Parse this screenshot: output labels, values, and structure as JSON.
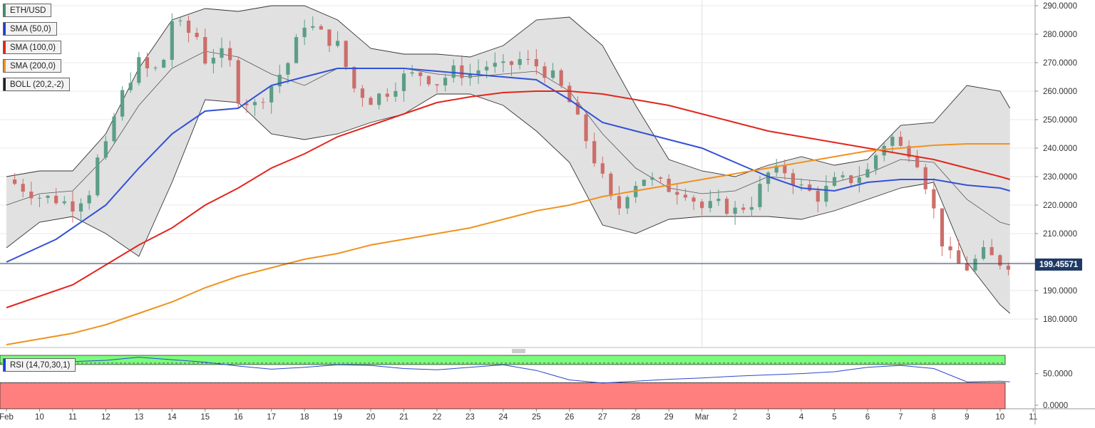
{
  "legend": [
    {
      "label": "ETH/USD",
      "color": "#4a8f6e"
    },
    {
      "label": "SMA (50,0)",
      "color": "#1f3fd6"
    },
    {
      "label": "SMA (100,0)",
      "color": "#e2261c"
    },
    {
      "label": "SMA (200,0)",
      "color": "#f0921e"
    },
    {
      "label": "BOLL (20,2,-2)",
      "color": "#222222"
    }
  ],
  "rsi_legend": {
    "label": "RSI (14,70,30,1)",
    "color": "#1f3fd6"
  },
  "current_price": {
    "label": "199.45571",
    "value": 199.45571
  },
  "colors": {
    "up": "#5c9e86",
    "down": "#cc6e6a",
    "band": "#dcdcdc",
    "sma50": "#3251d8",
    "sma100": "#e2261c",
    "sma200": "#f0921e",
    "rsi": "#2a47d0",
    "overbought": "#7cfc7c",
    "oversold": "#ff7f7f",
    "price_line": "#1e3a66"
  },
  "chart_data": [
    {
      "type": "candlestick",
      "title": "ETH/USD",
      "ylim": [
        170,
        292
      ],
      "yticks": [
        180,
        190,
        200,
        210,
        220,
        230,
        240,
        250,
        260,
        270,
        280,
        290
      ],
      "ytick_labels": [
        "180.0000",
        "190.0000",
        "200.0000",
        "210.0000",
        "220.0000",
        "230.0000",
        "240.0000",
        "250.0000",
        "260.0000",
        "270.0000",
        "280.0000",
        "290.0000"
      ],
      "x_labels": [
        "Feb",
        "10",
        "11",
        "12",
        "13",
        "14",
        "15",
        "16",
        "17",
        "18",
        "19",
        "20",
        "21",
        "22",
        "23",
        "24",
        "25",
        "26",
        "27",
        "28",
        "29",
        "Mar",
        "2",
        "3",
        "4",
        "5",
        "6",
        "7",
        "8",
        "9",
        "10",
        "11"
      ],
      "grid": true,
      "current_price": 199.45571,
      "close_series": [
        [
          0,
          229
        ],
        [
          0.5,
          226
        ],
        [
          1,
          223
        ],
        [
          1.5,
          222
        ],
        [
          2,
          220
        ],
        [
          2.5,
          225
        ],
        [
          2.8,
          238
        ],
        [
          3,
          240
        ],
        [
          3.3,
          253
        ],
        [
          3.6,
          262
        ],
        [
          4,
          270
        ],
        [
          4.4,
          266
        ],
        [
          4.8,
          272
        ],
        [
          5,
          285
        ],
        [
          5.4,
          281
        ],
        [
          5.8,
          279
        ],
        [
          6,
          271
        ],
        [
          6.4,
          274
        ],
        [
          6.8,
          269
        ],
        [
          7,
          258
        ],
        [
          7.5,
          255
        ],
        [
          8,
          262
        ],
        [
          8.5,
          270
        ],
        [
          9,
          284
        ],
        [
          9.5,
          280
        ],
        [
          10,
          276
        ],
        [
          10.5,
          261
        ],
        [
          11,
          257
        ],
        [
          11.5,
          260
        ],
        [
          12,
          265
        ],
        [
          12.5,
          266
        ],
        [
          13,
          263
        ],
        [
          13.5,
          267
        ],
        [
          14,
          266
        ],
        [
          14.5,
          269
        ],
        [
          15,
          268
        ],
        [
          15.5,
          271
        ],
        [
          16,
          269
        ],
        [
          16.6,
          264
        ],
        [
          17,
          256
        ],
        [
          17.5,
          243
        ],
        [
          18,
          229
        ],
        [
          18.4,
          217
        ],
        [
          18.8,
          226
        ],
        [
          19.2,
          230
        ],
        [
          19.6,
          228
        ],
        [
          20,
          226
        ],
        [
          20.5,
          225
        ],
        [
          21,
          219
        ],
        [
          21.5,
          220
        ],
        [
          22,
          218
        ],
        [
          22.5,
          221
        ],
        [
          23,
          231
        ],
        [
          23.5,
          232
        ],
        [
          24,
          226
        ],
        [
          24.5,
          223
        ],
        [
          25,
          228
        ],
        [
          25.5,
          229
        ],
        [
          26,
          232
        ],
        [
          26.4,
          241
        ],
        [
          26.8,
          244
        ],
        [
          27,
          240
        ],
        [
          27.4,
          239
        ],
        [
          27.8,
          226
        ],
        [
          28,
          218
        ],
        [
          28.3,
          205
        ],
        [
          28.6,
          200
        ],
        [
          29,
          198
        ],
        [
          29.5,
          203
        ],
        [
          30,
          200
        ],
        [
          30.3,
          199.46
        ]
      ],
      "series": [
        {
          "name": "SMA (50,0)",
          "values": [
            [
              0,
              200
            ],
            [
              1.5,
              208
            ],
            [
              3,
              220
            ],
            [
              4,
              233
            ],
            [
              5,
              245
            ],
            [
              6,
              253
            ],
            [
              7,
              254
            ],
            [
              8,
              262
            ],
            [
              9,
              265
            ],
            [
              10,
              268
            ],
            [
              11,
              268
            ],
            [
              12,
              268
            ],
            [
              13,
              267
            ],
            [
              14,
              266
            ],
            [
              15,
              265
            ],
            [
              16,
              264
            ],
            [
              17,
              257
            ],
            [
              18,
              249
            ],
            [
              19,
              246
            ],
            [
              20,
              243
            ],
            [
              21,
              240
            ],
            [
              22,
              235
            ],
            [
              23,
              230
            ],
            [
              24,
              226
            ],
            [
              25,
              225
            ],
            [
              26,
              228
            ],
            [
              27,
              229
            ],
            [
              28,
              229
            ],
            [
              29,
              227
            ],
            [
              30,
              226
            ],
            [
              30.3,
              225
            ]
          ]
        },
        {
          "name": "SMA (100,0)",
          "values": [
            [
              0,
              184
            ],
            [
              2,
              192
            ],
            [
              3,
              199
            ],
            [
              4,
              206
            ],
            [
              5,
              212
            ],
            [
              6,
              220
            ],
            [
              7,
              226
            ],
            [
              8,
              233
            ],
            [
              9,
              238
            ],
            [
              10,
              244
            ],
            [
              11,
              248
            ],
            [
              12,
              252
            ],
            [
              13,
              256
            ],
            [
              14,
              258
            ],
            [
              15,
              259.5
            ],
            [
              16,
              260
            ],
            [
              17,
              260
            ],
            [
              18,
              259
            ],
            [
              19,
              257
            ],
            [
              20,
              255
            ],
            [
              21,
              252
            ],
            [
              22,
              249
            ],
            [
              23,
              246
            ],
            [
              24,
              244
            ],
            [
              25,
              242
            ],
            [
              26,
              240
            ],
            [
              27,
              238
            ],
            [
              28,
              236
            ],
            [
              29,
              233
            ],
            [
              30,
              230
            ],
            [
              30.3,
              229
            ]
          ]
        },
        {
          "name": "SMA (200,0)",
          "values": [
            [
              0,
              171
            ],
            [
              2,
              175
            ],
            [
              3,
              178
            ],
            [
              4,
              182
            ],
            [
              5,
              186
            ],
            [
              6,
              191
            ],
            [
              7,
              195
            ],
            [
              8,
              198
            ],
            [
              9,
              201
            ],
            [
              10,
              203
            ],
            [
              11,
              206
            ],
            [
              12,
              208
            ],
            [
              13,
              210
            ],
            [
              14,
              212
            ],
            [
              15,
              215
            ],
            [
              16,
              218
            ],
            [
              17,
              220
            ],
            [
              18,
              223
            ],
            [
              19,
              225
            ],
            [
              20,
              227
            ],
            [
              21,
              229
            ],
            [
              22,
              231
            ],
            [
              23,
              233
            ],
            [
              24,
              235
            ],
            [
              25,
              237
            ],
            [
              26,
              239
            ],
            [
              27,
              240
            ],
            [
              28,
              241
            ],
            [
              29,
              241.5
            ],
            [
              30,
              241.5
            ],
            [
              30.3,
              241.5
            ]
          ]
        }
      ],
      "bollinger": {
        "upper": [
          [
            0,
            230
          ],
          [
            1,
            232
          ],
          [
            2,
            232
          ],
          [
            3,
            245
          ],
          [
            4,
            268
          ],
          [
            5,
            285
          ],
          [
            6,
            289
          ],
          [
            7,
            288
          ],
          [
            8,
            290
          ],
          [
            9,
            290
          ],
          [
            10,
            285
          ],
          [
            11,
            275
          ],
          [
            12,
            273
          ],
          [
            13,
            273
          ],
          [
            14,
            272
          ],
          [
            15,
            276
          ],
          [
            16,
            285
          ],
          [
            17,
            286
          ],
          [
            18,
            276
          ],
          [
            19,
            255
          ],
          [
            20,
            236
          ],
          [
            21,
            232
          ],
          [
            22,
            230
          ],
          [
            23,
            234
          ],
          [
            24,
            237
          ],
          [
            25,
            234
          ],
          [
            26,
            236
          ],
          [
            27,
            248
          ],
          [
            28,
            249
          ],
          [
            29,
            262
          ],
          [
            30,
            260
          ],
          [
            30.3,
            254
          ]
        ],
        "middle": [
          [
            0,
            220
          ],
          [
            1,
            224
          ],
          [
            2,
            225
          ],
          [
            3,
            237
          ],
          [
            4,
            255
          ],
          [
            5,
            268
          ],
          [
            6,
            274
          ],
          [
            7,
            272
          ],
          [
            8,
            266
          ],
          [
            9,
            262
          ],
          [
            10,
            268
          ],
          [
            11,
            268
          ],
          [
            12,
            268
          ],
          [
            13,
            266
          ],
          [
            14,
            265
          ],
          [
            15,
            266
          ],
          [
            16,
            267
          ],
          [
            17,
            260
          ],
          [
            18,
            245
          ],
          [
            19,
            233
          ],
          [
            20,
            226
          ],
          [
            21,
            224
          ],
          [
            22,
            225
          ],
          [
            23,
            230
          ],
          [
            24,
            229
          ],
          [
            25,
            228
          ],
          [
            26,
            231
          ],
          [
            27,
            236
          ],
          [
            28,
            235
          ],
          [
            29,
            222
          ],
          [
            30,
            214
          ],
          [
            30.3,
            213
          ]
        ],
        "lower": [
          [
            0,
            205
          ],
          [
            1,
            214
          ],
          [
            2,
            216
          ],
          [
            3,
            210
          ],
          [
            4,
            202
          ],
          [
            5,
            228
          ],
          [
            6,
            257
          ],
          [
            7,
            256
          ],
          [
            8,
            245
          ],
          [
            9,
            243
          ],
          [
            10,
            245
          ],
          [
            11,
            249
          ],
          [
            12,
            252
          ],
          [
            13,
            259
          ],
          [
            14,
            259
          ],
          [
            15,
            255
          ],
          [
            16,
            246
          ],
          [
            17,
            235
          ],
          [
            18,
            213
          ],
          [
            19,
            210
          ],
          [
            20,
            215
          ],
          [
            21,
            216
          ],
          [
            22,
            216
          ],
          [
            23,
            216
          ],
          [
            24,
            215
          ],
          [
            25,
            218
          ],
          [
            26,
            222
          ],
          [
            27,
            226
          ],
          [
            28,
            228
          ],
          [
            29,
            200
          ],
          [
            30,
            185
          ],
          [
            30.3,
            182
          ]
        ]
      }
    },
    {
      "type": "line",
      "title": "RSI (14,70,30,1)",
      "ylim": [
        0,
        80
      ],
      "yticks": [
        0,
        50
      ],
      "ytick_labels": [
        "0.0000",
        "50.0000"
      ],
      "overbought": 70,
      "oversold": 30,
      "values": [
        [
          0,
          70
        ],
        [
          1,
          68
        ],
        [
          2,
          69
        ],
        [
          3,
          71
        ],
        [
          4,
          76
        ],
        [
          5,
          72
        ],
        [
          6,
          68
        ],
        [
          7,
          62
        ],
        [
          8,
          57
        ],
        [
          9,
          60
        ],
        [
          10,
          64
        ],
        [
          11,
          63
        ],
        [
          12,
          58
        ],
        [
          13,
          56
        ],
        [
          14,
          60
        ],
        [
          15,
          64
        ],
        [
          16,
          55
        ],
        [
          17,
          40
        ],
        [
          18,
          35
        ],
        [
          19,
          38
        ],
        [
          20,
          41
        ],
        [
          21,
          43
        ],
        [
          22,
          46
        ],
        [
          23,
          48
        ],
        [
          24,
          50
        ],
        [
          25,
          53
        ],
        [
          26,
          60
        ],
        [
          27,
          63
        ],
        [
          28,
          58
        ],
        [
          29,
          37
        ],
        [
          30,
          38
        ],
        [
          30.3,
          37
        ]
      ]
    }
  ]
}
